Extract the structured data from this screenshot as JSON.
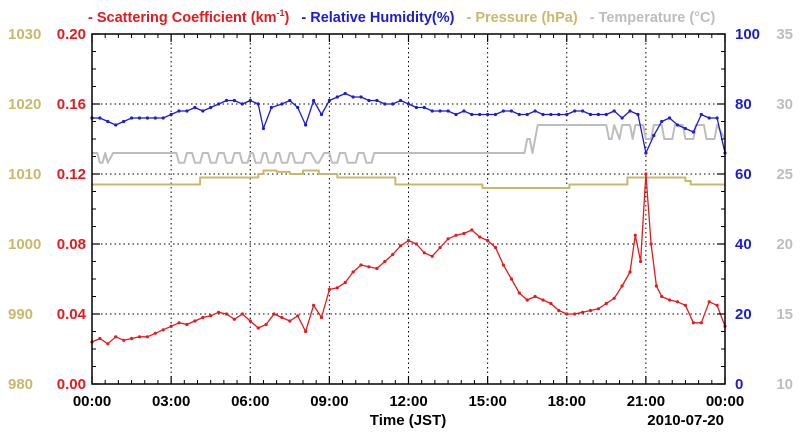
{
  "chart_data": {
    "type": "line",
    "legend": [
      {
        "key": "scat",
        "dash": "-",
        "label_main": "Scattering Coefficient (km",
        "sup": "-1",
        "label_end": ")",
        "color": "#e8191c"
      },
      {
        "key": "rh",
        "dash": "-",
        "label_main": "Relative Humidity(%)",
        "sup": "",
        "label_end": "",
        "color": "#1c1cd8"
      },
      {
        "key": "press",
        "dash": "-",
        "label_main": "Pressure (hPa)",
        "sup": "",
        "label_end": "",
        "color": "#c8b96a"
      },
      {
        "key": "temp",
        "dash": "-",
        "label_main": "Temperature (°C)",
        "sup": "",
        "label_end": "",
        "color": "#bdbdbd"
      }
    ],
    "xlabel": "Time (JST)",
    "date_label": "2010-07-20",
    "x_range_hours": [
      0,
      24
    ],
    "x_ticks": [
      {
        "h": 0,
        "label": "00:00"
      },
      {
        "h": 3,
        "label": "03:00"
      },
      {
        "h": 6,
        "label": "06:00"
      },
      {
        "h": 9,
        "label": "09:00"
      },
      {
        "h": 12,
        "label": "12:00"
      },
      {
        "h": 15,
        "label": "15:00"
      },
      {
        "h": 18,
        "label": "18:00"
      },
      {
        "h": 21,
        "label": "21:00"
      },
      {
        "h": 24,
        "label": "00:00"
      }
    ],
    "axes": {
      "pressure": {
        "color": "#c8b96a",
        "range": [
          980,
          1030
        ],
        "ticks": [
          "980",
          "990",
          "1000",
          "1010",
          "1020",
          "1030"
        ]
      },
      "scattering": {
        "color": "#e8191c",
        "range": [
          0.0,
          0.2
        ],
        "ticks": [
          "0.00",
          "0.04",
          "0.08",
          "0.12",
          "0.16",
          "0.20"
        ]
      },
      "humidity": {
        "color": "#1c1cd8",
        "range": [
          0,
          100
        ],
        "ticks": [
          "0",
          "20",
          "40",
          "60",
          "80",
          "100"
        ]
      },
      "temperature": {
        "color": "#bdbdbd",
        "range": [
          10,
          35
        ],
        "ticks": [
          "10",
          "15",
          "20",
          "25",
          "30",
          "35"
        ]
      }
    },
    "series": [
      {
        "name": "Scattering Coefficient",
        "axis": "scattering",
        "color": "#e8191c",
        "markers": true,
        "x": [
          0.0,
          0.3,
          0.6,
          0.9,
          1.2,
          1.5,
          1.8,
          2.1,
          2.4,
          2.7,
          3.0,
          3.3,
          3.6,
          3.9,
          4.2,
          4.5,
          4.8,
          5.1,
          5.4,
          5.7,
          6.0,
          6.3,
          6.6,
          6.9,
          7.2,
          7.5,
          7.8,
          8.1,
          8.4,
          8.7,
          9.0,
          9.3,
          9.6,
          9.9,
          10.2,
          10.5,
          10.8,
          11.1,
          11.4,
          11.7,
          12.0,
          12.3,
          12.6,
          12.9,
          13.2,
          13.5,
          13.8,
          14.1,
          14.4,
          14.7,
          15.0,
          15.3,
          15.6,
          15.9,
          16.2,
          16.5,
          16.8,
          17.1,
          17.4,
          17.7,
          18.0,
          18.3,
          18.6,
          18.9,
          19.2,
          19.5,
          19.8,
          20.1,
          20.4,
          20.6,
          20.8,
          21.0,
          21.2,
          21.4,
          21.6,
          21.9,
          22.2,
          22.5,
          22.8,
          23.1,
          23.4,
          23.7,
          24.0
        ],
        "y": [
          0.024,
          0.026,
          0.023,
          0.027,
          0.025,
          0.026,
          0.027,
          0.027,
          0.029,
          0.031,
          0.033,
          0.035,
          0.034,
          0.036,
          0.038,
          0.039,
          0.041,
          0.04,
          0.037,
          0.04,
          0.036,
          0.032,
          0.034,
          0.04,
          0.038,
          0.036,
          0.039,
          0.03,
          0.045,
          0.038,
          0.054,
          0.055,
          0.058,
          0.064,
          0.068,
          0.067,
          0.066,
          0.07,
          0.074,
          0.079,
          0.082,
          0.08,
          0.075,
          0.073,
          0.078,
          0.083,
          0.085,
          0.086,
          0.088,
          0.084,
          0.082,
          0.078,
          0.068,
          0.06,
          0.052,
          0.048,
          0.05,
          0.048,
          0.046,
          0.042,
          0.04,
          0.04,
          0.041,
          0.042,
          0.043,
          0.046,
          0.049,
          0.056,
          0.064,
          0.085,
          0.07,
          0.12,
          0.08,
          0.056,
          0.05,
          0.048,
          0.047,
          0.045,
          0.035,
          0.035,
          0.047,
          0.045,
          0.033
        ]
      },
      {
        "name": "Relative Humidity",
        "axis": "humidity",
        "color": "#1c1cd8",
        "markers": true,
        "x": [
          0.0,
          0.3,
          0.6,
          0.9,
          1.2,
          1.5,
          1.8,
          2.1,
          2.4,
          2.7,
          3.0,
          3.3,
          3.6,
          3.9,
          4.2,
          4.5,
          4.8,
          5.1,
          5.4,
          5.7,
          6.0,
          6.3,
          6.5,
          6.8,
          7.2,
          7.5,
          7.8,
          8.1,
          8.4,
          8.7,
          9.0,
          9.3,
          9.6,
          9.9,
          10.2,
          10.5,
          10.8,
          11.1,
          11.4,
          11.7,
          12.0,
          12.3,
          12.6,
          12.9,
          13.2,
          13.5,
          13.8,
          14.1,
          14.4,
          14.7,
          15.0,
          15.3,
          15.6,
          15.9,
          16.2,
          16.5,
          16.8,
          17.1,
          17.4,
          17.7,
          18.0,
          18.3,
          18.6,
          18.9,
          19.2,
          19.5,
          19.8,
          20.1,
          20.4,
          20.7,
          21.0,
          21.3,
          21.6,
          21.9,
          22.2,
          22.5,
          22.8,
          23.1,
          23.4,
          23.7,
          24.0
        ],
        "y": [
          76,
          76,
          75,
          74,
          75,
          76,
          76,
          76,
          76,
          76,
          77,
          78,
          78,
          79,
          78,
          79,
          80,
          81,
          81,
          80,
          81,
          80,
          73,
          79,
          80,
          81,
          79,
          74,
          81,
          77,
          81,
          82,
          83,
          82,
          82,
          81,
          81,
          80,
          80,
          81,
          80,
          79,
          79,
          78,
          78,
          78,
          77,
          78,
          77,
          77,
          77,
          77,
          78,
          78,
          77,
          77,
          78,
          77,
          77,
          77,
          77,
          78,
          78,
          77,
          77,
          77,
          78,
          76,
          78,
          77,
          66,
          71,
          75,
          76,
          74,
          73,
          72,
          77,
          76,
          76,
          66
        ]
      },
      {
        "name": "Pressure",
        "axis": "pressure",
        "color": "#c8b96a",
        "markers": false,
        "x": [
          0.0,
          4.1,
          4.1,
          6.3,
          6.3,
          6.5,
          6.5,
          7.0,
          7.0,
          7.5,
          7.5,
          8.0,
          8.0,
          8.6,
          8.6,
          9.3,
          9.3,
          11.5,
          11.5,
          14.8,
          14.8,
          18.1,
          18.1,
          20.3,
          20.3,
          22.5,
          22.5,
          22.7,
          22.7,
          24.0
        ],
        "y": [
          1008.5,
          1008.5,
          1009.5,
          1009.5,
          1010,
          1010,
          1010.5,
          1010.5,
          1010.3,
          1010.3,
          1010,
          1010,
          1010.5,
          1010.5,
          1010,
          1010,
          1009.5,
          1009.5,
          1008.5,
          1008.5,
          1008,
          1008,
          1008.5,
          1008.5,
          1009.5,
          1009.5,
          1009,
          1009,
          1008.5,
          1008.5
        ]
      },
      {
        "name": "Temperature",
        "axis": "temperature",
        "color": "#bdbdbd",
        "markers": false,
        "x": [
          0.0,
          0.2,
          0.3,
          0.4,
          0.5,
          0.6,
          0.8,
          3.2,
          3.3,
          3.5,
          3.6,
          3.8,
          3.9,
          4.1,
          4.2,
          4.4,
          4.5,
          4.7,
          4.8,
          5.0,
          5.1,
          5.3,
          5.4,
          5.6,
          5.7,
          5.9,
          6.0,
          6.1,
          6.2,
          6.4,
          6.5,
          6.6,
          6.7,
          6.9,
          7.0,
          7.1,
          7.2,
          7.4,
          7.5,
          7.6,
          7.7,
          8.0,
          8.1,
          8.3,
          8.5,
          8.6,
          8.8,
          9.0,
          9.1,
          9.3,
          9.4,
          9.6,
          9.7,
          10.0,
          10.1,
          10.3,
          10.4,
          10.6,
          10.7,
          16.4,
          16.5,
          16.6,
          16.7,
          16.8,
          16.9,
          19.5,
          19.6,
          19.7,
          19.8,
          20.0,
          20.1,
          20.4,
          20.5,
          20.6,
          20.9,
          21.0,
          21.2,
          21.3,
          21.6,
          21.7,
          22.0,
          22.1,
          22.4,
          22.5,
          22.8,
          22.9,
          23.2,
          23.3,
          23.6,
          23.7,
          24.0
        ],
        "y": [
          26.5,
          26.5,
          25.8,
          25.8,
          26.5,
          25.8,
          26.5,
          26.5,
          25.8,
          25.8,
          26.5,
          26.5,
          25.8,
          25.8,
          26.5,
          26.5,
          25.8,
          25.8,
          26.5,
          26.5,
          25.8,
          25.8,
          26.5,
          26.5,
          25.8,
          25.8,
          26.5,
          26.5,
          25.8,
          25.8,
          26.5,
          26.5,
          25.8,
          25.8,
          26.5,
          26.5,
          25.8,
          25.8,
          26.5,
          26.5,
          25.8,
          25.8,
          26.5,
          26.5,
          25.8,
          25.8,
          26.5,
          26.5,
          25.8,
          25.8,
          26.5,
          26.5,
          25.8,
          25.8,
          26.5,
          26.5,
          25.8,
          25.8,
          26.5,
          26.5,
          27.5,
          27.5,
          26.5,
          27.5,
          28.5,
          28.5,
          27.5,
          27.5,
          28.5,
          27.5,
          28.5,
          28.5,
          27.5,
          28.5,
          28.5,
          27.5,
          27.5,
          28.5,
          28.5,
          27.5,
          27.5,
          28.5,
          28.5,
          27.5,
          27.5,
          28.5,
          28.5,
          27.5,
          27.5,
          28.5,
          27.5
        ]
      }
    ]
  }
}
